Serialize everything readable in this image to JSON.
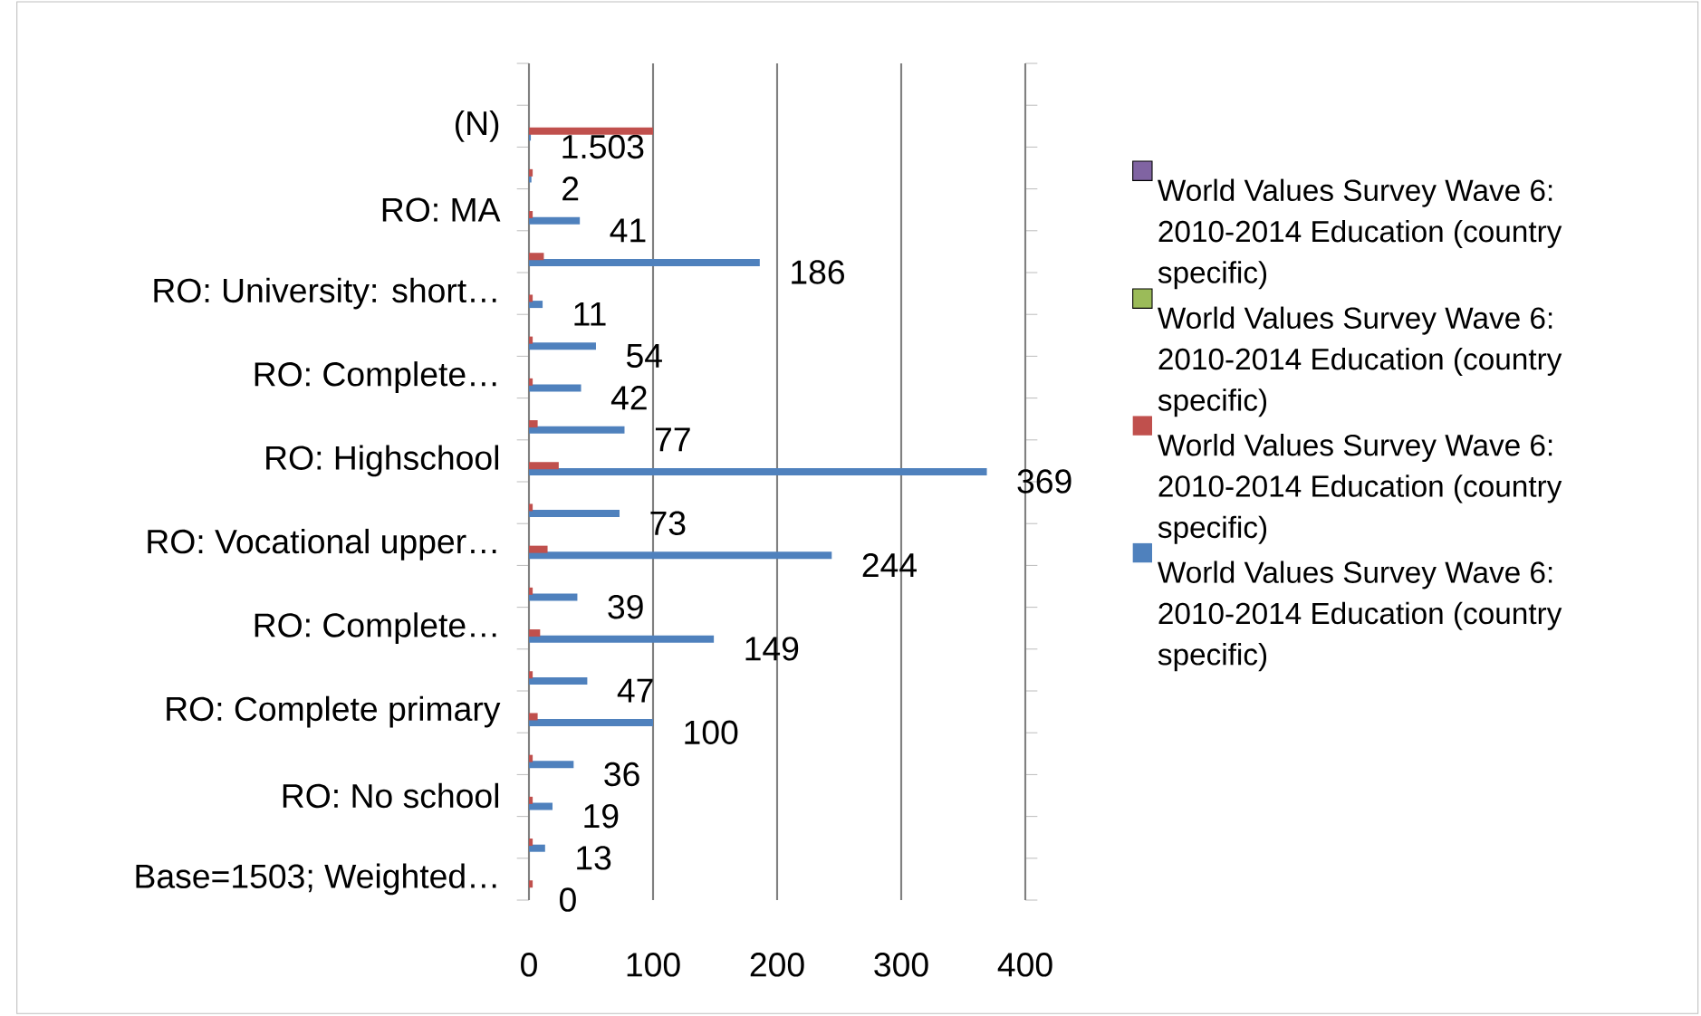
{
  "chart_data": {
    "type": "bar",
    "orientation": "horizontal",
    "categories": [
      null,
      "(N)",
      null,
      "RO: MA",
      null,
      "RO: University: short…",
      null,
      "RO: Complete…",
      null,
      "RO: Highschool",
      null,
      "RO: Vocational upper…",
      null,
      "RO: Complete…",
      null,
      "RO: Complete primary",
      null,
      "RO: No school",
      null,
      "Base=1503; Weighted…"
    ],
    "series": [
      {
        "name": "World Values Survey Wave 6: 2010-2014 Education (country specific)",
        "color": "#4f81bd",
        "values": [
          null,
          1.503,
          2,
          41,
          186,
          11,
          54,
          42,
          77,
          369,
          73,
          244,
          39,
          149,
          47,
          100,
          36,
          19,
          13,
          0
        ],
        "value_labels": [
          null,
          "1.503",
          "2",
          "41",
          "186",
          "11",
          "54",
          "42",
          "77",
          "369",
          "73",
          "244",
          "39",
          "149",
          "47",
          "100",
          "36",
          "19",
          "13",
          "0"
        ]
      },
      {
        "name": "World Values Survey Wave 6: 2010-2014 Education (country specific)",
        "color": "#c0504d",
        "values": [
          null,
          100,
          3,
          3,
          12,
          3,
          3,
          3,
          7,
          24,
          3,
          15,
          3,
          9,
          3,
          7,
          3,
          3,
          3,
          3
        ]
      },
      {
        "name": "World Values Survey Wave 6: 2010-2014 Education (country specific)",
        "color": "#9bbb59",
        "values": [
          null,
          null,
          null,
          null,
          null,
          null,
          null,
          null,
          null,
          null,
          null,
          null,
          null,
          null,
          null,
          null,
          null,
          null,
          null,
          null
        ]
      },
      {
        "name": "World Values Survey Wave 6: 2010-2014 Education (country specific)",
        "color": "#8064a2",
        "values": [
          null,
          null,
          null,
          null,
          null,
          null,
          null,
          null,
          null,
          null,
          null,
          null,
          null,
          null,
          null,
          null,
          null,
          null,
          null,
          null
        ]
      }
    ],
    "xlim": [
      0,
      400
    ],
    "xticks": [
      0,
      100,
      200,
      300,
      400
    ],
    "grid": "x",
    "legend": "right"
  }
}
